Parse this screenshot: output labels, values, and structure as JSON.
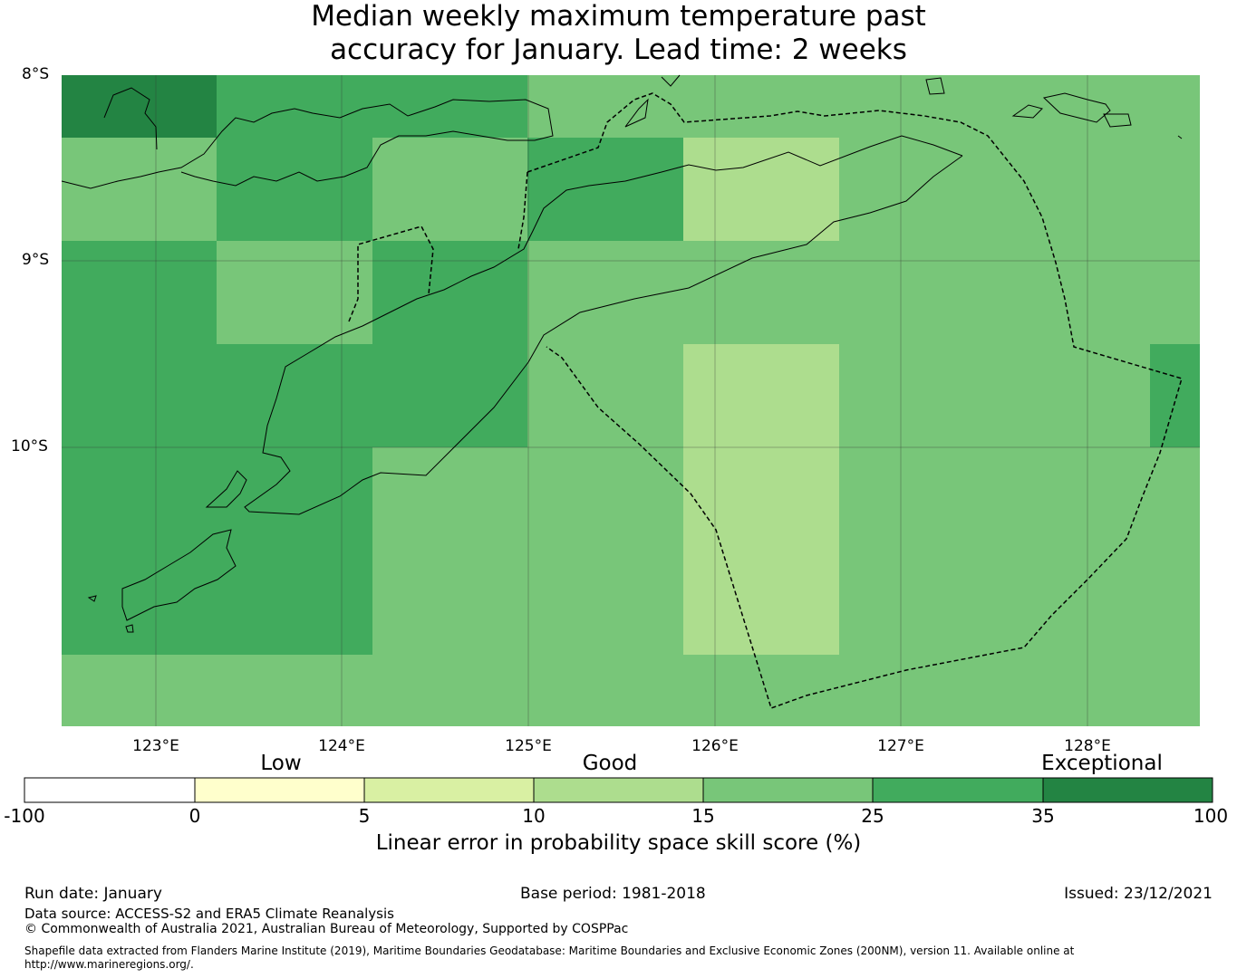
{
  "title": {
    "line1": "Median weekly maximum temperature past",
    "line2": "accuracy for January. Lead time: 2 weeks"
  },
  "map": {
    "lat_labels": [
      "8°S",
      "9°S",
      "10°S"
    ],
    "lon_labels": [
      "123°E",
      "124°E",
      "125°E",
      "126°E",
      "127°E",
      "128°E"
    ],
    "lon_range": [
      122.5,
      128.6
    ],
    "lat_range": [
      -8.0,
      -11.5
    ],
    "grid_res_deg": 0.833
  },
  "colorbar": {
    "categories": [
      "Low",
      "Good",
      "Exceptional"
    ],
    "ticks": [
      "-100",
      "0",
      "5",
      "10",
      "15",
      "25",
      "35",
      "100"
    ],
    "bins": [
      {
        "from": -100,
        "to": 0,
        "color": "#ffffff"
      },
      {
        "from": 0,
        "to": 5,
        "color": "#ffffcc"
      },
      {
        "from": 5,
        "to": 10,
        "color": "#d9f0a3"
      },
      {
        "from": 10,
        "to": 15,
        "color": "#addd8e"
      },
      {
        "from": 15,
        "to": 25,
        "color": "#78c679"
      },
      {
        "from": 25,
        "to": 35,
        "color": "#41ab5d"
      },
      {
        "from": 35,
        "to": 100,
        "color": "#238443"
      }
    ],
    "label": "Linear error in probability space skill score (%)"
  },
  "footer": {
    "run_date": "Run date: January",
    "base_period": "Base period: 1981-2018",
    "issued": "Issued: 23/12/2021",
    "data_source": "Data source: ACCESS-S2 and ERA5 Climate Reanalysis",
    "copyright": "© Commonwealth of Australia 2021, Australian Bureau of Meteorology, Supported by COSPPac",
    "shapefile_line1": "Shapefile data extracted from Flanders Marine Institute (2019), Maritime Boundaries Geodatabase: Maritime Boundaries and Exclusive Economic Zones (200NM), version 11. Available online at",
    "shapefile_line2": "http://www.marineregions.org/."
  }
}
